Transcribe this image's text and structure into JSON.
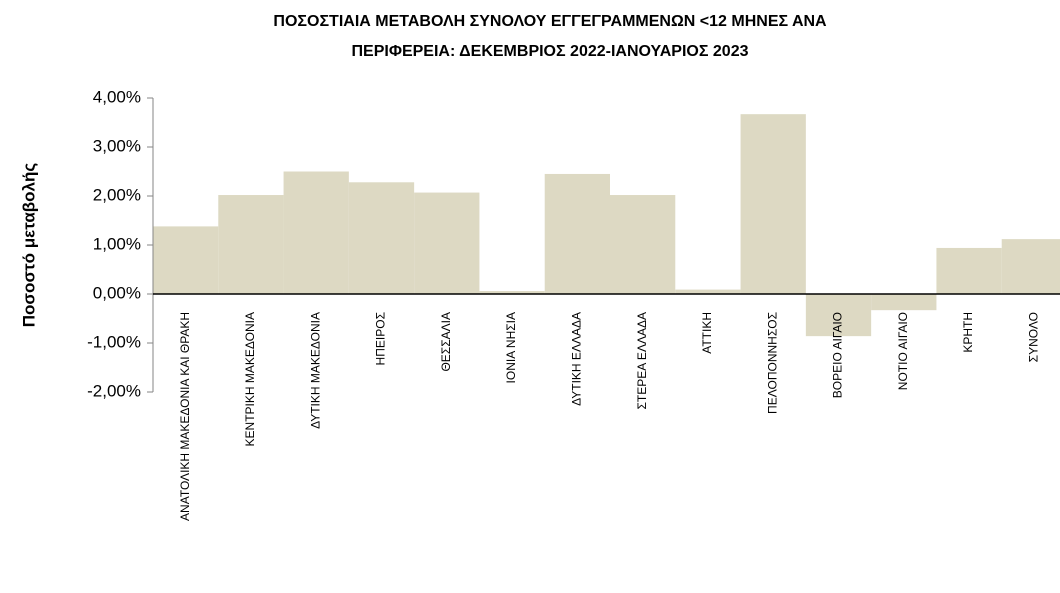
{
  "chart_data": {
    "type": "bar",
    "title": [
      "ΠΟΣΟΣΤΙΑΙΑ ΜΕΤΑΒΟΛΗ  ΣΥΝΟΛΟΥ ΕΓΓΕΓΡΑΜΜΕΝΩΝ <12 ΜΗΝΕΣ ΑΝΑ",
      "ΠΕΡΙΦΕΡΕΙΑ: ΔΕΚΕΜΒΡΙΟΣ 2022-ΙΑΝΟΥΑΡΙΟΣ 2023"
    ],
    "y_label": "Ποσοστό μεταβολής",
    "categories": [
      "ΑΝΑΤΟΛΙΚΗ ΜΑΚΕΔΟΝΙΑ ΚΑΙ ΘΡΑΚΗ",
      "ΚΕΝΤΡΙΚΗ ΜΑΚΕΔΟΝΙΑ",
      "ΔΥΤΙΚΗ ΜΑΚΕΔΟΝΙΑ",
      "ΗΠΕΙΡΟΣ",
      "ΘΕΣΣΑΛΙΑ",
      "ΙΟΝΙΑ ΝΗΣΙΑ",
      "ΔΥΤΙΚΗ ΕΛΛΑΔΑ",
      "ΣΤΕΡΕΑ ΕΛΛΑΔΑ",
      "ΑΤΤΙΚΗ",
      "ΠΕΛΟΠΟΝΝΗΣΟΣ",
      "ΒΟΡΕΙΟ ΑΙΓΑΙΟ",
      "ΝΟΤΙΟ ΑΙΓΑΙΟ",
      "ΚΡΗΤΗ",
      "ΣΥΝΟΛΟ"
    ],
    "values": [
      1.38,
      2.02,
      2.5,
      2.28,
      2.07,
      0.06,
      2.45,
      2.02,
      0.09,
      3.67,
      -0.86,
      -0.33,
      0.94,
      1.12
    ],
    "color": "#ddd9c3",
    "ylim": [
      -2,
      4
    ],
    "yticks": [
      {
        "value": -2,
        "label": "-2,00%"
      },
      {
        "value": -1,
        "label": "-1,00%"
      },
      {
        "value": 0,
        "label": "0,00%"
      },
      {
        "value": 1,
        "label": "1,00%"
      },
      {
        "value": 2,
        "label": "2,00%"
      },
      {
        "value": 3,
        "label": "3,00%"
      },
      {
        "value": 4,
        "label": "4,00%"
      }
    ],
    "grid": false
  }
}
